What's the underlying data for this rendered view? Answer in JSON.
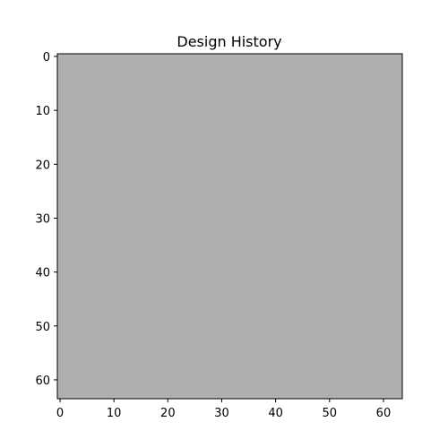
{
  "chart_data": {
    "type": "heatmap",
    "title": "Design History",
    "xlabel": "",
    "ylabel": "",
    "xlim": [
      -0.5,
      63.5
    ],
    "ylim": [
      63.5,
      -0.5
    ],
    "y_inverted": true,
    "grid": false,
    "xticks": [
      0,
      10,
      20,
      30,
      40,
      50,
      60
    ],
    "yticks": [
      0,
      10,
      20,
      30,
      40,
      50,
      60
    ],
    "image_shape": [
      64,
      64
    ],
    "cell_color": "#b0b0b0",
    "uniform_value": "constant"
  }
}
